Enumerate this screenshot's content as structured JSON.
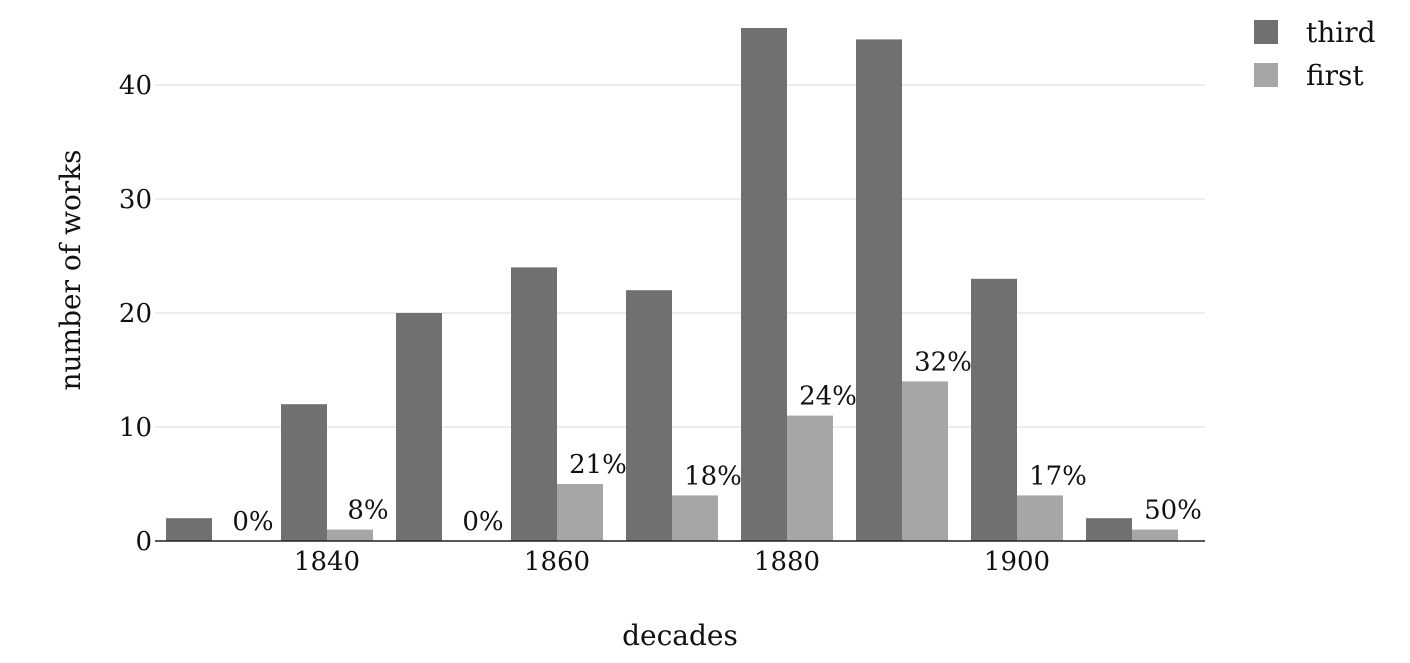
{
  "chart_data": {
    "type": "bar",
    "xlabel": "decades",
    "ylabel": "number of works",
    "x": [
      1830,
      1840,
      1850,
      1860,
      1870,
      1880,
      1890,
      1900,
      1910
    ],
    "x_ticks": [
      1840,
      1860,
      1880,
      1900
    ],
    "y_ticks": [
      0,
      10,
      20,
      30,
      40
    ],
    "ylim": [
      0,
      46
    ],
    "grid": true,
    "legend_position": "top-right",
    "series": [
      {
        "name": "third",
        "color": "#707070",
        "values": [
          2,
          12,
          20,
          24,
          22,
          45,
          44,
          23,
          2
        ]
      },
      {
        "name": "first",
        "color": "#a6a6a6",
        "values": [
          0,
          1,
          0,
          5,
          4,
          11,
          14,
          4,
          1
        ]
      }
    ],
    "annotations": [
      "0%",
      "8%",
      "0%",
      "21%",
      "18%",
      "24%",
      "32%",
      "17%",
      "50%"
    ]
  }
}
